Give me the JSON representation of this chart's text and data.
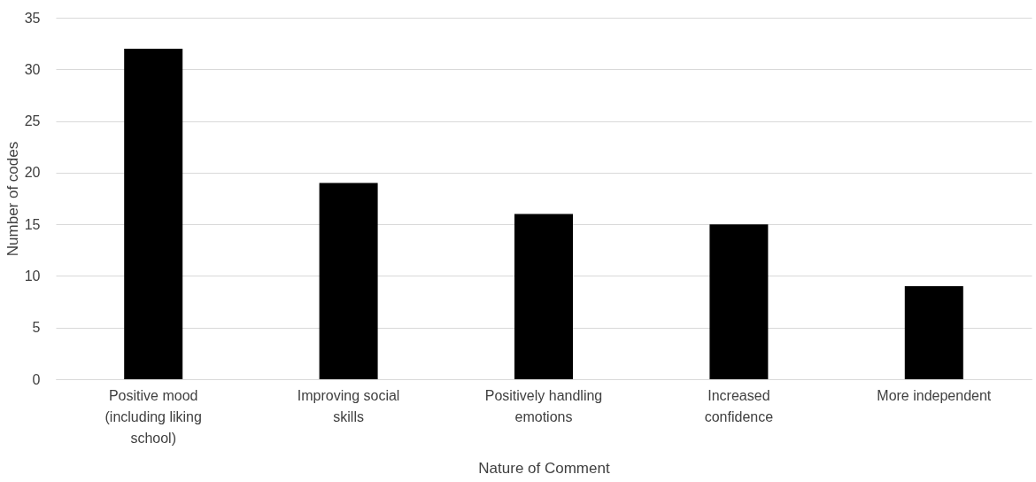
{
  "chart_data": {
    "type": "bar",
    "xlabel": "Nature of Comment",
    "ylabel": "Number of codes",
    "categories": [
      "Positive mood (including liking school)",
      "Improving social skills",
      "Positively handling emotions",
      "Increased confidence",
      "More independent"
    ],
    "values": [
      32,
      19,
      16,
      15,
      9
    ],
    "color": "#000000",
    "ylim": [
      0,
      35
    ],
    "yticks": [
      0,
      5,
      10,
      15,
      20,
      25,
      30,
      35
    ],
    "grid": "y"
  }
}
